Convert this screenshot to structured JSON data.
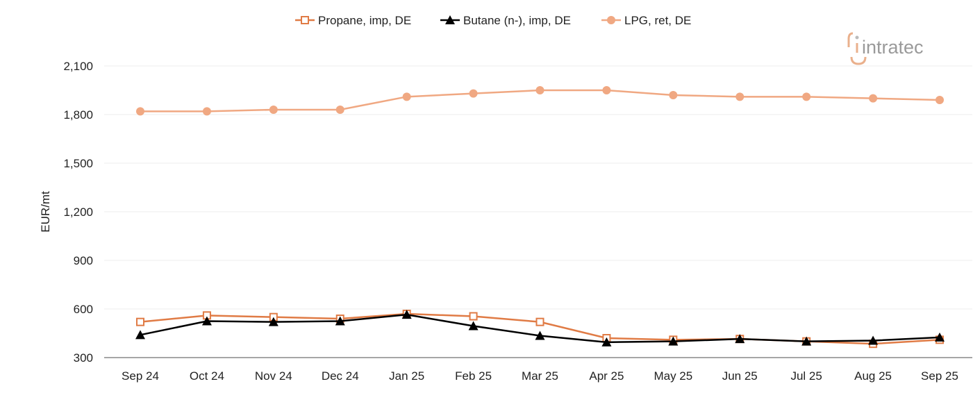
{
  "logo": {
    "text": "intratec"
  },
  "chart_data": {
    "type": "line",
    "title": "",
    "xlabel": "",
    "ylabel": "EUR/mt",
    "ylim": [
      300,
      2100
    ],
    "yticks": [
      300,
      600,
      900,
      1200,
      1500,
      1800,
      2100
    ],
    "ytick_labels": [
      "300",
      "600",
      "900",
      "1,200",
      "1,500",
      "1,800",
      "2,100"
    ],
    "grid": true,
    "legend_position": "top",
    "categories": [
      "Sep 24",
      "Oct 24",
      "Nov 24",
      "Dec 24",
      "Jan 25",
      "Feb 25",
      "Mar 25",
      "Apr 25",
      "May 25",
      "Jun 25",
      "Jul 25",
      "Aug 25",
      "Sep 25"
    ],
    "series": [
      {
        "name": "Propane, imp, DE",
        "color": "#e07b45",
        "marker": "square-open",
        "values": [
          520,
          560,
          550,
          540,
          570,
          555,
          520,
          420,
          410,
          415,
          400,
          385,
          410
        ]
      },
      {
        "name": "Butane (n-), imp, DE",
        "color": "#000000",
        "marker": "triangle",
        "values": [
          440,
          525,
          520,
          525,
          565,
          495,
          435,
          395,
          400,
          415,
          400,
          405,
          425
        ]
      },
      {
        "name": "LPG, ret, DE",
        "color": "#f0a882",
        "marker": "circle",
        "values": [
          1820,
          1820,
          1830,
          1830,
          1910,
          1930,
          1950,
          1950,
          1920,
          1910,
          1910,
          1900,
          1890
        ]
      }
    ]
  }
}
